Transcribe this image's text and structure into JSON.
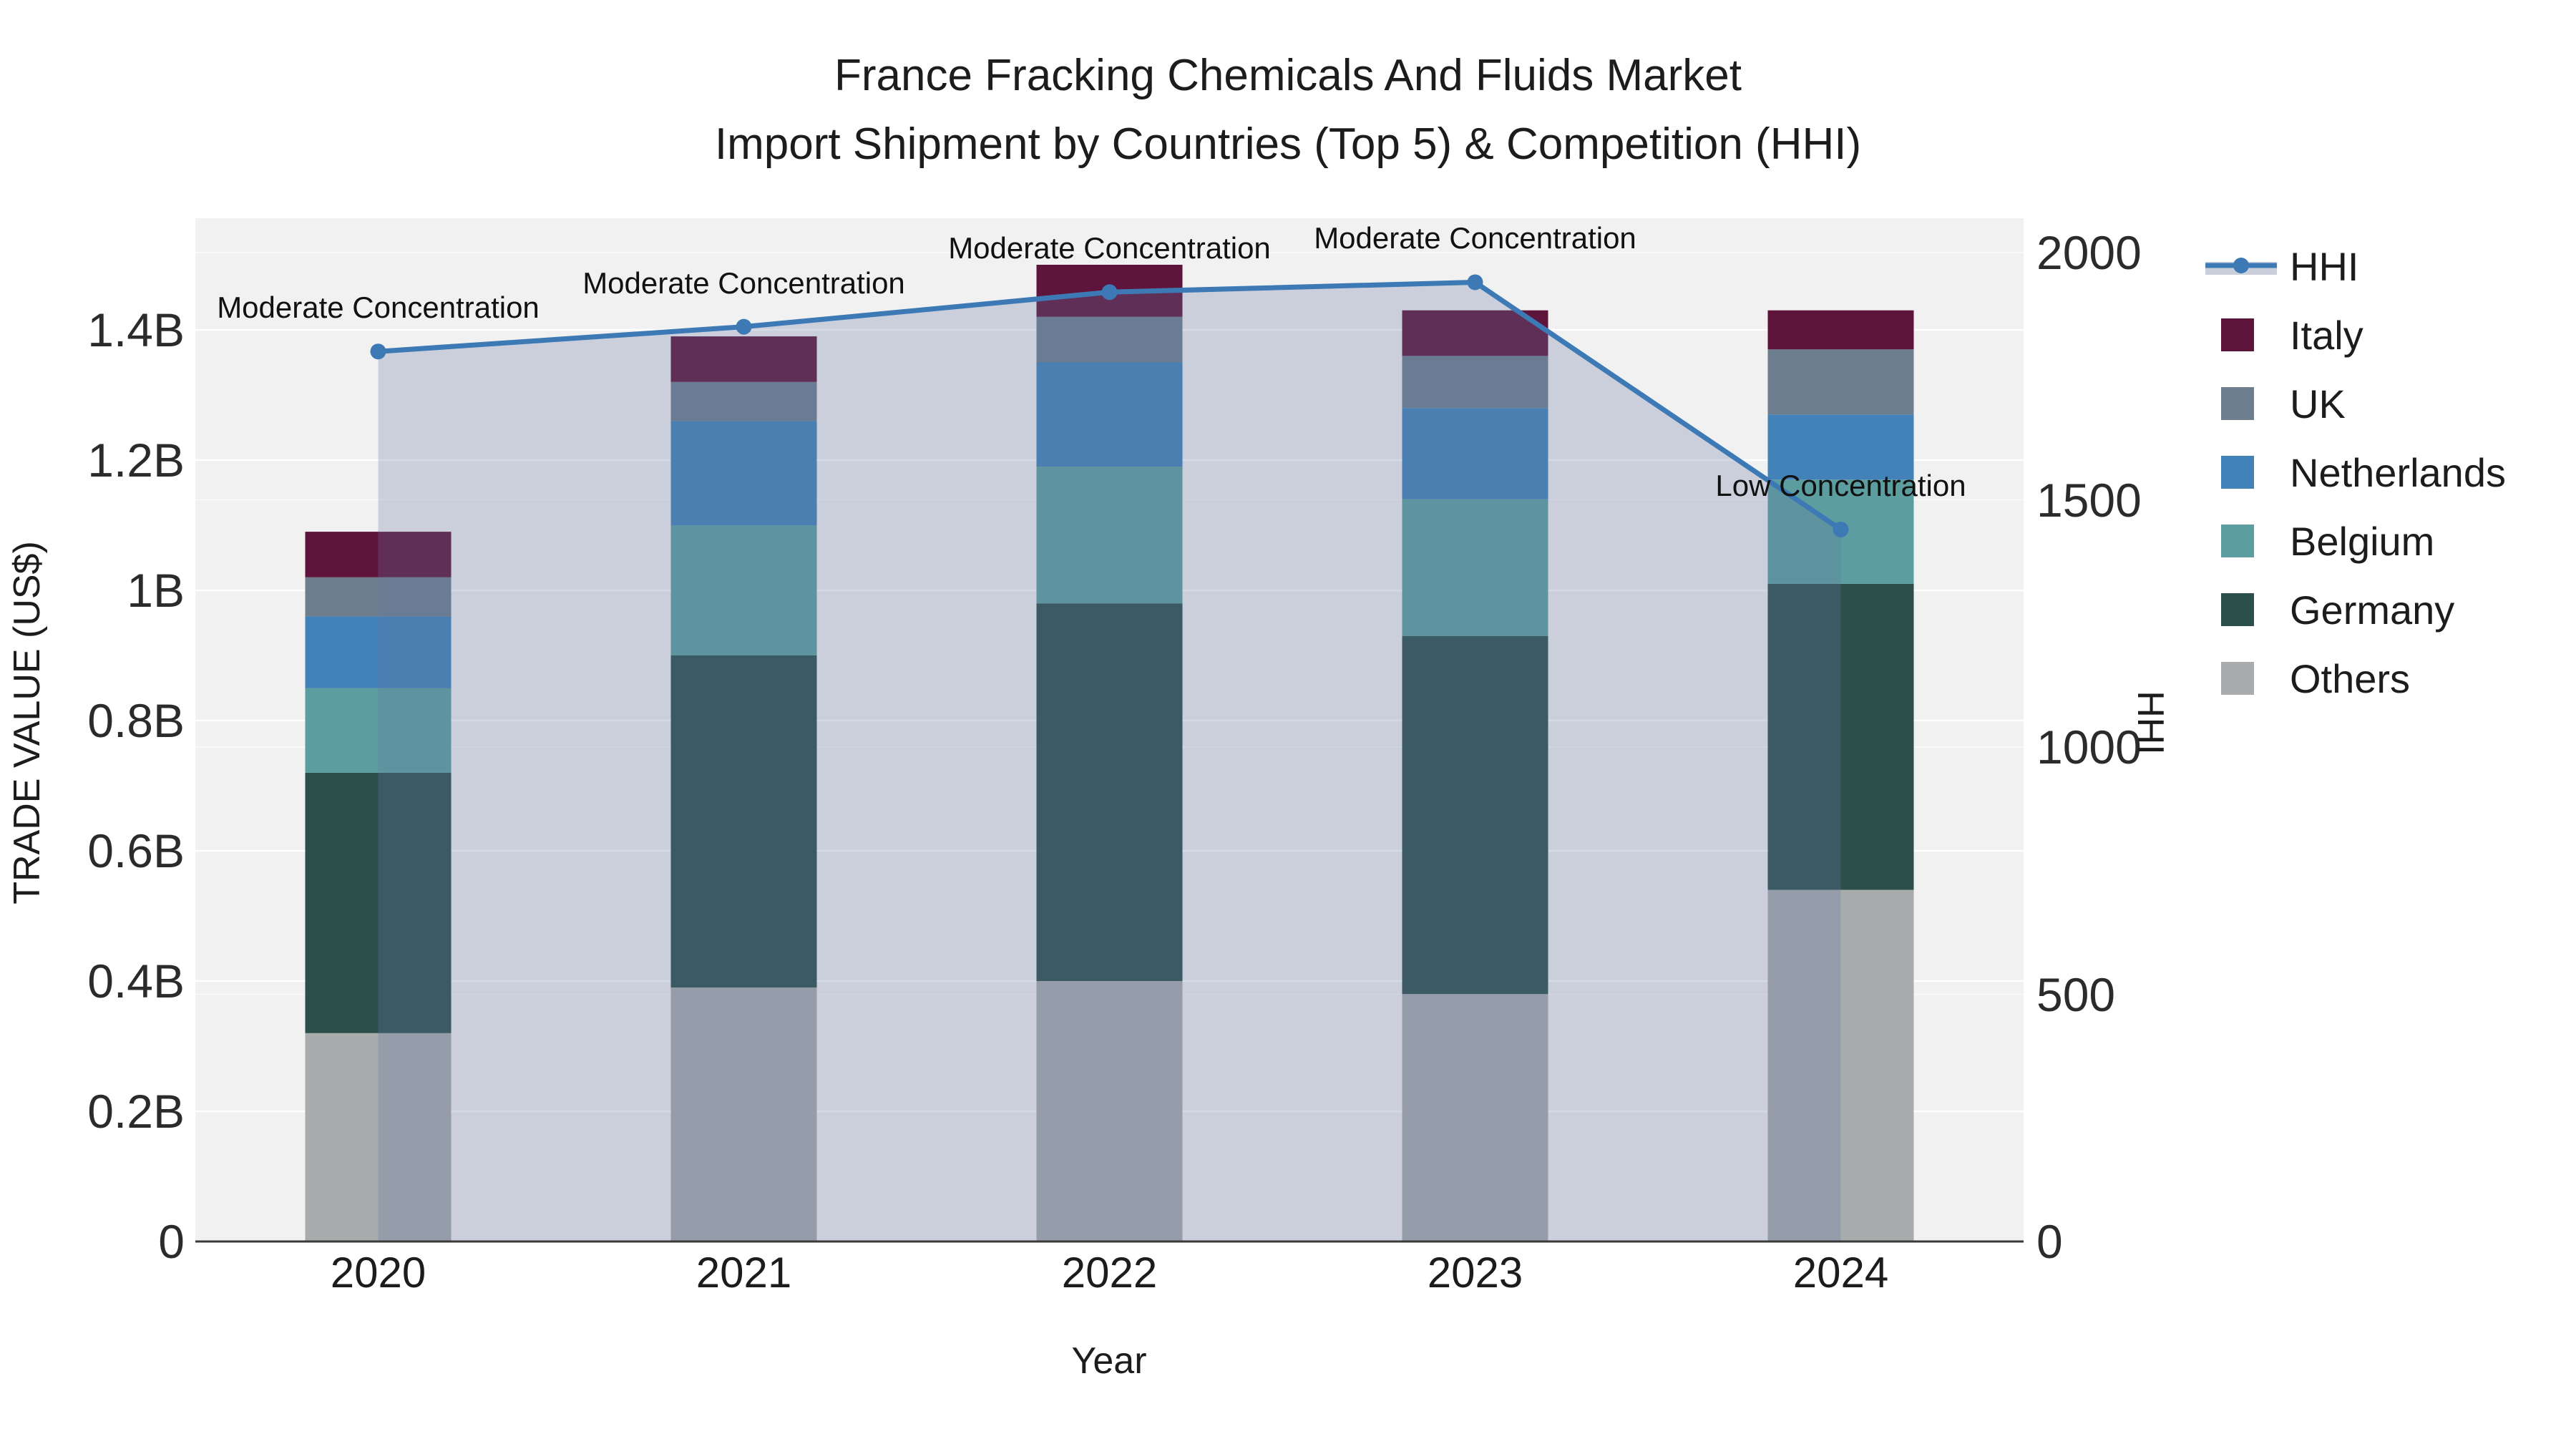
{
  "title": {
    "line1": "France Fracking Chemicals And Fluids Market",
    "line2": "Import Shipment by Countries (Top 5) & Competition (HHI)"
  },
  "chart_data": {
    "type": "bar",
    "stacked": true,
    "categories": [
      "2020",
      "2021",
      "2022",
      "2023",
      "2024"
    ],
    "bar_value_unit": "billions US$",
    "series": [
      {
        "name": "Others",
        "color": "#a9acad",
        "values": [
          0.32,
          0.39,
          0.4,
          0.38,
          0.54
        ]
      },
      {
        "name": "Germany",
        "color": "#2d4f4c",
        "values": [
          0.4,
          0.51,
          0.58,
          0.55,
          0.47
        ]
      },
      {
        "name": "Belgium",
        "color": "#5c9ea0",
        "values": [
          0.13,
          0.2,
          0.21,
          0.21,
          0.16
        ]
      },
      {
        "name": "Netherlands",
        "color": "#4282b8",
        "values": [
          0.11,
          0.16,
          0.16,
          0.14,
          0.1
        ]
      },
      {
        "name": "UK",
        "color": "#6d7f8f",
        "values": [
          0.06,
          0.06,
          0.07,
          0.08,
          0.1
        ]
      },
      {
        "name": "Italy",
        "color": "#5f143c",
        "values": [
          0.07,
          0.07,
          0.08,
          0.07,
          0.06
        ]
      }
    ],
    "line_series": {
      "name": "HHI",
      "color": "#3d7ab5",
      "area_fill": "rgba(100,120,160,0.28)",
      "values": [
        1800,
        1850,
        1920,
        1940,
        1440
      ]
    },
    "annotations": [
      {
        "category": "2020",
        "text": "Moderate Concentration"
      },
      {
        "category": "2021",
        "text": "Moderate Concentration"
      },
      {
        "category": "2022",
        "text": "Moderate Concentration"
      },
      {
        "category": "2023",
        "text": "Moderate Concentration"
      },
      {
        "category": "2024",
        "text": "Low Concentration"
      }
    ],
    "x_axis": {
      "title": "Year"
    },
    "left_axis": {
      "title": "TRADE VALUE (US$)",
      "tick_labels": [
        "0",
        "0.2B",
        "0.4B",
        "0.6B",
        "0.8B",
        "1B",
        "1.2B",
        "1.4B"
      ],
      "tick_values": [
        0,
        0.2,
        0.4,
        0.6,
        0.8,
        1.0,
        1.2,
        1.4
      ],
      "range": [
        0,
        1.57
      ]
    },
    "right_axis": {
      "title": "HHI",
      "tick_labels": [
        "0",
        "500",
        "1000",
        "1500",
        "2000"
      ],
      "tick_values": [
        0,
        500,
        1000,
        1500,
        2000
      ],
      "range": [
        0,
        2000
      ]
    },
    "legend_entries": [
      "HHI",
      "Italy",
      "UK",
      "Netherlands",
      "Belgium",
      "Germany",
      "Others"
    ],
    "colors": {
      "plot_background": "#f1f1f1",
      "grid_left": "#ffffff",
      "grid_right": "rgba(255,255,255,0.65)",
      "axis_line": "#3a3a3a",
      "text": "#1c1c1c"
    }
  }
}
